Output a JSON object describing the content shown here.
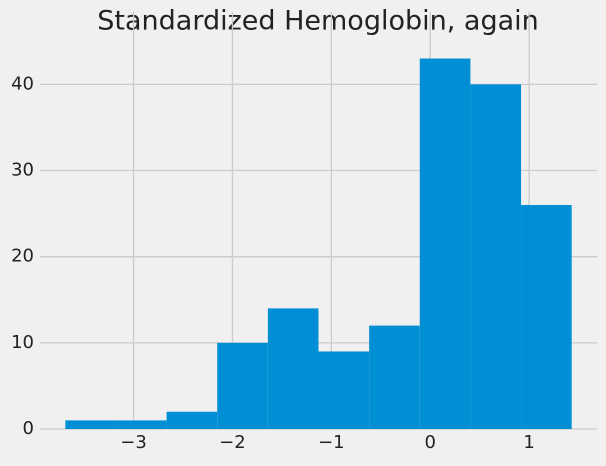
{
  "chart_data": {
    "type": "histogram",
    "title": "Standardized Hemoglobin, again",
    "bins": [
      -3.69,
      -3.178,
      -2.666,
      -2.154,
      -1.642,
      -1.13,
      -0.618,
      -0.106,
      0.406,
      0.918,
      1.43
    ],
    "values": [
      1,
      1,
      2,
      10,
      14,
      9,
      12,
      43,
      40,
      26
    ],
    "color": "#008fd5",
    "xlim": [
      -3.946,
      1.686
    ],
    "xticks": [
      {
        "value": -3,
        "label": "−3"
      },
      {
        "value": -2,
        "label": "−2"
      },
      {
        "value": -1,
        "label": "−1"
      },
      0,
      1
    ],
    "ylim": [
      0,
      45.15
    ],
    "yticks": [
      0,
      10,
      20,
      30,
      40
    ],
    "grid": true
  }
}
